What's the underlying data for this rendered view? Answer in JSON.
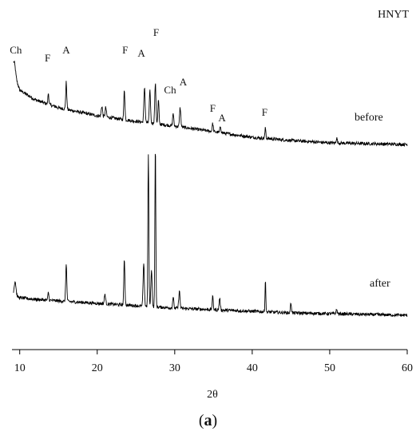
{
  "chart_data": {
    "type": "line",
    "title": "HNYT",
    "xlabel": "2θ",
    "ylabel": "",
    "xlim": [
      9,
      60
    ],
    "x_ticks": [
      "10",
      "20",
      "30",
      "40",
      "50",
      "60"
    ],
    "grid": false,
    "legend": "none",
    "line_color": "#000000",
    "series": [
      {
        "name": "before",
        "baseline": [
          [
            9.2,
            96
          ],
          [
            10,
            72
          ],
          [
            12,
            60
          ],
          [
            15,
            50
          ],
          [
            20,
            40
          ],
          [
            25,
            33
          ],
          [
            30,
            27
          ],
          [
            35,
            20
          ],
          [
            40,
            13
          ],
          [
            45,
            9
          ],
          [
            50,
            6
          ],
          [
            55,
            5
          ],
          [
            60,
            4
          ]
        ],
        "peaks": [
          {
            "x": 9.3,
            "h": 14,
            "w": 0.15
          },
          {
            "x": 13.7,
            "h": 14,
            "w": 0.06
          },
          {
            "x": 16.0,
            "h": 34,
            "w": 0.07
          },
          {
            "x": 20.6,
            "h": 13,
            "w": 0.08
          },
          {
            "x": 21.1,
            "h": 12,
            "w": 0.08
          },
          {
            "x": 23.5,
            "h": 38,
            "w": 0.07
          },
          {
            "x": 26.1,
            "h": 44,
            "w": 0.08
          },
          {
            "x": 26.8,
            "h": 40,
            "w": 0.08
          },
          {
            "x": 27.5,
            "h": 50,
            "w": 0.08
          },
          {
            "x": 27.9,
            "h": 30,
            "w": 0.07
          },
          {
            "x": 29.8,
            "h": 16,
            "w": 0.07
          },
          {
            "x": 30.7,
            "h": 24,
            "w": 0.08
          },
          {
            "x": 34.9,
            "h": 10,
            "w": 0.07
          },
          {
            "x": 35.9,
            "h": 8,
            "w": 0.07
          },
          {
            "x": 41.7,
            "h": 13,
            "w": 0.06
          },
          {
            "x": 50.9,
            "h": 6,
            "w": 0.08
          }
        ],
        "annotations": [
          {
            "text": "Ch",
            "x": 9.5,
            "y": 118
          },
          {
            "text": "F",
            "x": 13.6,
            "y": 108
          },
          {
            "text": "A",
            "x": 16.0,
            "y": 118
          },
          {
            "text": "F",
            "x": 23.6,
            "y": 118
          },
          {
            "text": "A",
            "x": 25.7,
            "y": 114
          },
          {
            "text": "F",
            "x": 27.6,
            "y": 140
          },
          {
            "text": "Ch",
            "x": 29.4,
            "y": 68
          },
          {
            "text": "A",
            "x": 31.1,
            "y": 78
          },
          {
            "text": "F",
            "x": 34.9,
            "y": 45
          },
          {
            "text": "A",
            "x": 36.1,
            "y": 33
          },
          {
            "text": "F",
            "x": 41.6,
            "y": 40
          }
        ]
      },
      {
        "name": "after",
        "baseline": [
          [
            9.2,
            28
          ],
          [
            10,
            25
          ],
          [
            12,
            23
          ],
          [
            15,
            21
          ],
          [
            20,
            18
          ],
          [
            25,
            15
          ],
          [
            30,
            12
          ],
          [
            35,
            10
          ],
          [
            40,
            8
          ],
          [
            45,
            6
          ],
          [
            50,
            5
          ],
          [
            55,
            4
          ],
          [
            60,
            3
          ]
        ],
        "peaks": [
          {
            "x": 9.4,
            "h": 18,
            "w": 0.12
          },
          {
            "x": 13.7,
            "h": 10,
            "w": 0.06
          },
          {
            "x": 16.0,
            "h": 48,
            "w": 0.07
          },
          {
            "x": 21.0,
            "h": 12,
            "w": 0.08
          },
          {
            "x": 23.5,
            "h": 58,
            "w": 0.07
          },
          {
            "x": 26.0,
            "h": 52,
            "w": 0.08
          },
          {
            "x": 26.6,
            "h": 192,
            "w": 0.06
          },
          {
            "x": 27.0,
            "h": 45,
            "w": 0.08
          },
          {
            "x": 27.5,
            "h": 202,
            "w": 0.06
          },
          {
            "x": 29.8,
            "h": 14,
            "w": 0.07
          },
          {
            "x": 30.6,
            "h": 22,
            "w": 0.08
          },
          {
            "x": 34.9,
            "h": 16,
            "w": 0.07
          },
          {
            "x": 35.8,
            "h": 15,
            "w": 0.07
          },
          {
            "x": 41.7,
            "h": 40,
            "w": 0.05
          },
          {
            "x": 45.0,
            "h": 12,
            "w": 0.07
          },
          {
            "x": 50.9,
            "h": 5,
            "w": 0.08
          }
        ],
        "annotations": []
      }
    ]
  },
  "caption_prefix": "(",
  "caption_letter": "a",
  "caption_suffix": ")"
}
